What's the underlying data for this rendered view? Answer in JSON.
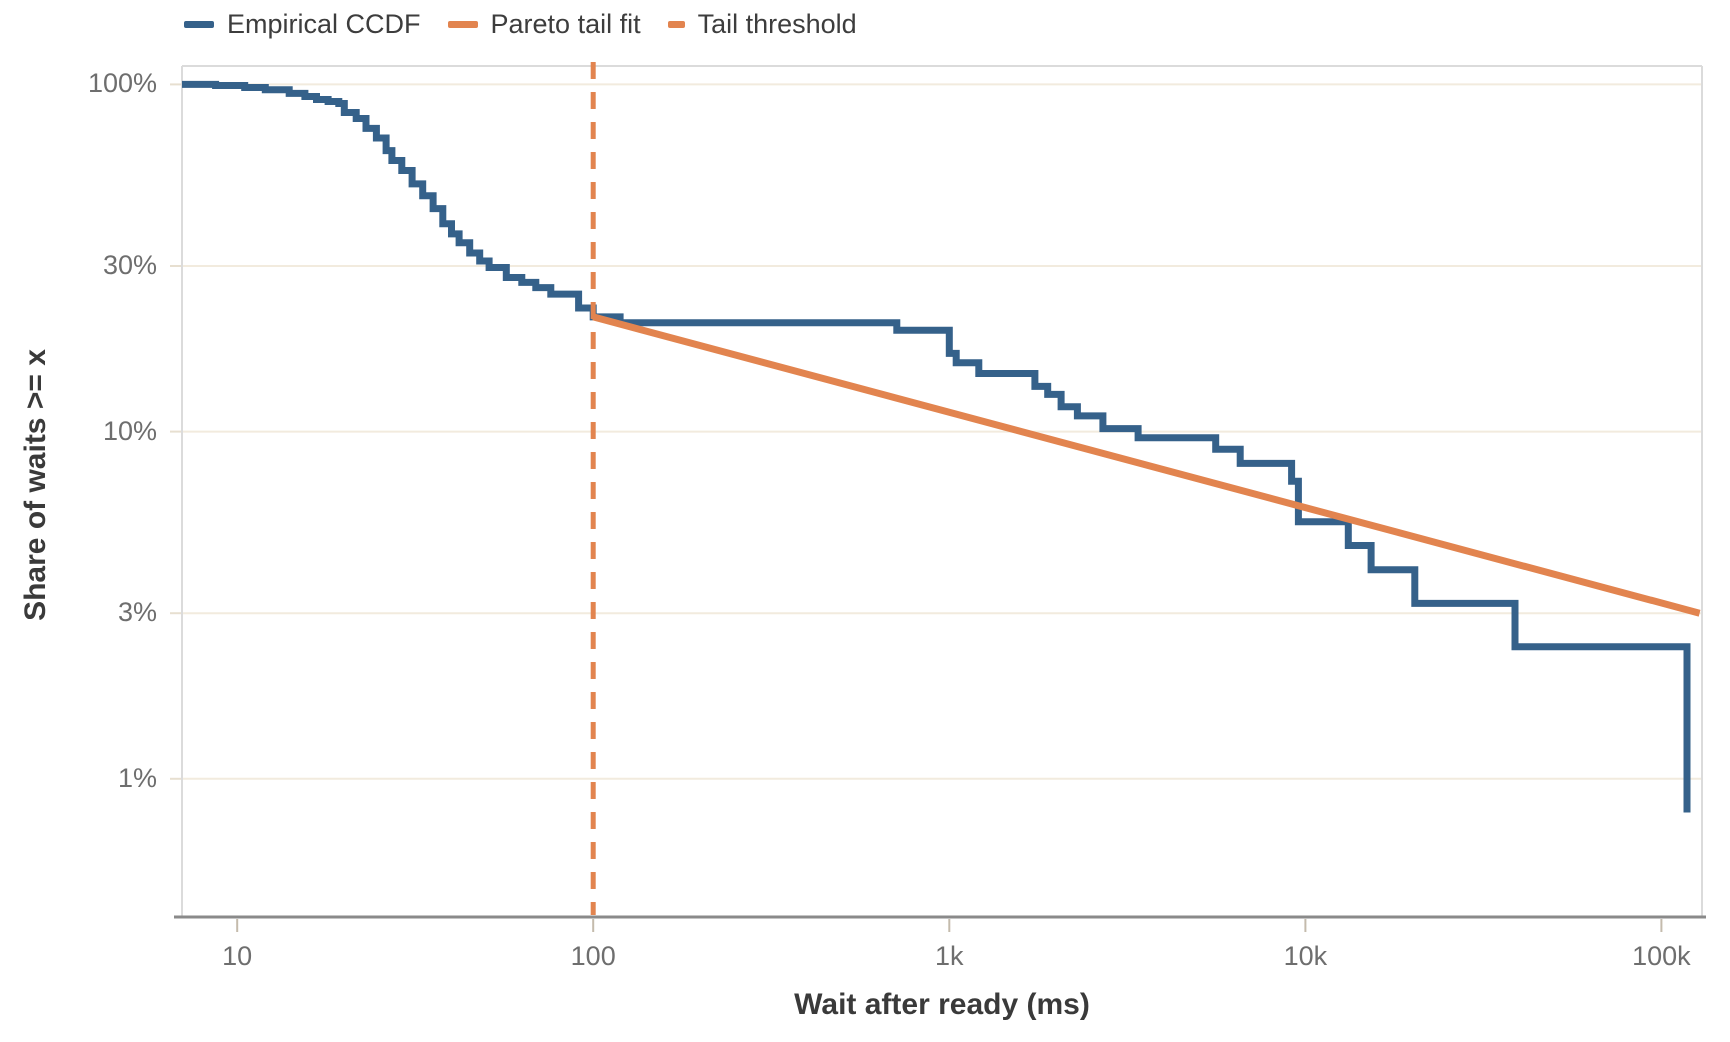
{
  "legend": {
    "items": [
      {
        "label": "Empirical CCDF",
        "color": "#35618A",
        "style": "solid"
      },
      {
        "label": "Pareto tail fit",
        "color": "#E2844F",
        "style": "solid"
      },
      {
        "label": "Tail threshold",
        "color": "#E2844F",
        "style": "dashed"
      }
    ]
  },
  "colors": {
    "ccdf_line": "#35618A",
    "pareto_fit_line": "#E2844F",
    "threshold_line": "#E2844F",
    "gridline": "#F2EBDE",
    "panel_border": "#DBDBDB",
    "bottom_axis": "#8A8A8A",
    "x_tick_mark": "#C4BBAC",
    "y_tick_mark": "#E7DFD0",
    "tick_label_text": "#6E6E6E",
    "axis_title_text": "#3A3A3A",
    "background": "#FFFFFF"
  },
  "chart_data": {
    "type": "line",
    "title": "",
    "xlabel": "Wait after ready (ms)",
    "ylabel": "Share of waits >= x",
    "x_scale": "log",
    "y_scale": "log",
    "xlim": [
      7,
      130000
    ],
    "ylim_percent": [
      0.4,
      113
    ],
    "grid": "horizontal-only",
    "legend_position": "top-left",
    "x_ticks": [
      {
        "value": 10,
        "label": "10"
      },
      {
        "value": 100,
        "label": "100"
      },
      {
        "value": 1000,
        "label": "1k"
      },
      {
        "value": 10000,
        "label": "10k"
      },
      {
        "value": 100000,
        "label": "100k"
      }
    ],
    "y_ticks": [
      {
        "value": 100,
        "label": "100%"
      },
      {
        "value": 30,
        "label": "30%"
      },
      {
        "value": 10,
        "label": "10%"
      },
      {
        "value": 3,
        "label": "3%"
      },
      {
        "value": 1,
        "label": "1%"
      }
    ],
    "series": [
      {
        "name": "Empirical CCDF",
        "render": "step-hv",
        "color": "#35618A",
        "width": 7,
        "points_ms_sharepct": [
          [
            7,
            100
          ],
          [
            8.7,
            99.3
          ],
          [
            10.5,
            98
          ],
          [
            12,
            96.5
          ],
          [
            14,
            94.2
          ],
          [
            15.5,
            92.3
          ],
          [
            16.7,
            90.5
          ],
          [
            18,
            89.3
          ],
          [
            19.3,
            88.1
          ],
          [
            20,
            83
          ],
          [
            21.6,
            79.8
          ],
          [
            23,
            74.7
          ],
          [
            24.6,
            70.1
          ],
          [
            26.2,
            64.5
          ],
          [
            27.2,
            60.4
          ],
          [
            29,
            56.5
          ],
          [
            31,
            51.7
          ],
          [
            33.2,
            47.8
          ],
          [
            35.5,
            43.9
          ],
          [
            37.8,
            39.7
          ],
          [
            40,
            37.1
          ],
          [
            42,
            35.0
          ],
          [
            45,
            32.7
          ],
          [
            48,
            31.0
          ],
          [
            51,
            29.7
          ],
          [
            57,
            27.8
          ],
          [
            63,
            26.9
          ],
          [
            69,
            26.0
          ],
          [
            76,
            24.9
          ],
          [
            91,
            22.7
          ],
          [
            100,
            21.4
          ],
          [
            119,
            20.6
          ],
          [
            712,
            19.6
          ],
          [
            1000,
            16.8
          ],
          [
            1046,
            15.8
          ],
          [
            1210,
            14.7
          ],
          [
            1740,
            13.5
          ],
          [
            1890,
            12.8
          ],
          [
            2060,
            11.8
          ],
          [
            2290,
            11.1
          ],
          [
            2700,
            10.2
          ],
          [
            3390,
            9.6
          ],
          [
            5600,
            8.9
          ],
          [
            6560,
            8.1
          ],
          [
            9150,
            7.2
          ],
          [
            9560,
            5.5
          ],
          [
            13200,
            4.7
          ],
          [
            15300,
            4.0
          ],
          [
            20300,
            3.2
          ],
          [
            38800,
            2.4
          ],
          [
            118000,
            0.8
          ]
        ]
      },
      {
        "name": "Pareto tail fit",
        "render": "straight-line",
        "color": "#E2844F",
        "width": 7,
        "points_ms_sharepct": [
          [
            100,
            21.4
          ],
          [
            128000,
            3.0
          ]
        ]
      },
      {
        "name": "Tail threshold",
        "render": "vline-dashed",
        "color": "#E2844F",
        "width": 5,
        "x_ms": 100
      }
    ]
  }
}
